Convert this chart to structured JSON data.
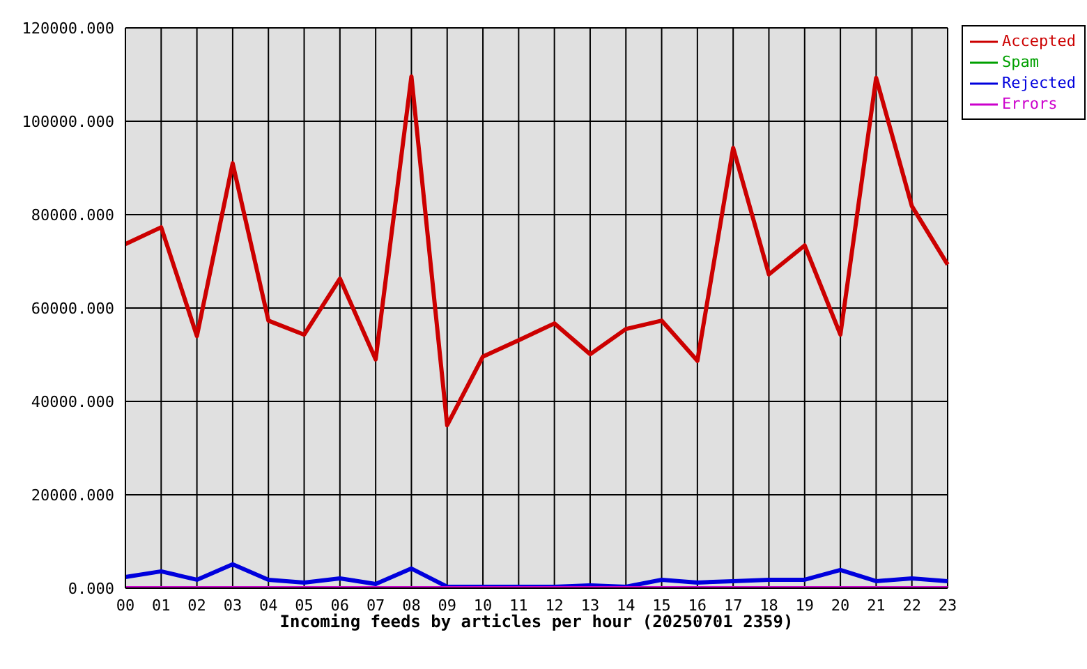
{
  "chart_data": {
    "type": "line",
    "xlabel": "Incoming feeds by articles per hour (20250701 2359)",
    "categories": [
      "00",
      "01",
      "02",
      "03",
      "04",
      "05",
      "06",
      "07",
      "08",
      "09",
      "10",
      "11",
      "12",
      "13",
      "14",
      "15",
      "16",
      "17",
      "18",
      "19",
      "20",
      "21",
      "22",
      "23"
    ],
    "series": [
      {
        "name": "Accepted",
        "color": "#cc0000",
        "values": [
          73700,
          77300,
          54000,
          91000,
          57300,
          54300,
          66300,
          49000,
          109600,
          34900,
          49600,
          53100,
          56700,
          50100,
          55500,
          57300,
          48700,
          94300,
          67200,
          73400,
          54300,
          109300,
          81800,
          69300
        ]
      },
      {
        "name": "Spam",
        "color": "#00a000",
        "values": [
          null,
          null,
          null,
          null,
          null,
          null,
          null,
          null,
          null,
          null,
          null,
          null,
          null,
          null,
          null,
          null,
          null,
          null,
          null,
          null,
          null,
          null,
          null,
          null
        ]
      },
      {
        "name": "Rejected",
        "color": "#0000dd",
        "values": [
          2400,
          3600,
          1800,
          5100,
          1800,
          1200,
          2100,
          900,
          4200,
          300,
          300,
          300,
          300,
          600,
          300,
          1800,
          1200,
          1500,
          1800,
          1800,
          3900,
          1500,
          2100,
          1500
        ]
      },
      {
        "name": "Errors",
        "color": "#cc00cc",
        "values": [
          0,
          0,
          0,
          0,
          0,
          0,
          0,
          0,
          0,
          0,
          0,
          0,
          0,
          0,
          0,
          0,
          0,
          0,
          0,
          0,
          0,
          0,
          0,
          0
        ]
      }
    ],
    "ylim": [
      0,
      120000
    ],
    "yticks": [
      {
        "value": 0,
        "label": "0.000"
      },
      {
        "value": 20000,
        "label": "20000.000"
      },
      {
        "value": 40000,
        "label": "40000.000"
      },
      {
        "value": 60000,
        "label": "60000.000"
      },
      {
        "value": 80000,
        "label": "80000.000"
      },
      {
        "value": 100000,
        "label": "100000.000"
      },
      {
        "value": 120000,
        "label": "120000.000"
      }
    ],
    "grid": true,
    "legend": "top right",
    "marker": "none",
    "line_style": "solid"
  }
}
